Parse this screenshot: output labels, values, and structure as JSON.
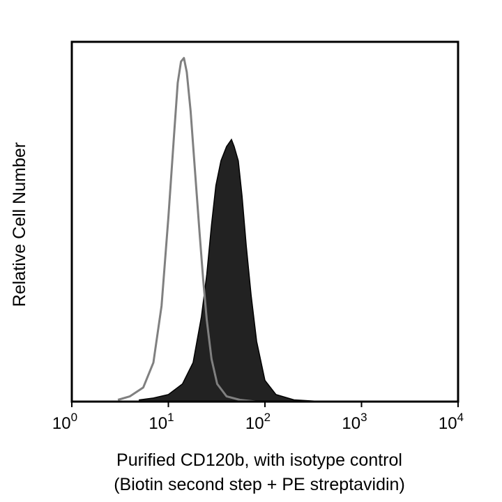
{
  "chart_data": {
    "type": "area",
    "xscale": "log",
    "xlim": [
      1,
      10000
    ],
    "ylim": [
      0,
      1
    ],
    "grid": false,
    "legend": "none",
    "x_ticks": [
      {
        "base": "10",
        "exp": "0",
        "value": 1
      },
      {
        "base": "10",
        "exp": "1",
        "value": 10
      },
      {
        "base": "10",
        "exp": "2",
        "value": 100
      },
      {
        "base": "10",
        "exp": "3",
        "value": 1000
      },
      {
        "base": "10",
        "exp": "4",
        "value": 10000
      }
    ],
    "xlabel_lines": [
      "Purified CD120b, with isotype control",
      "(Biotin second step + PE streptavidin)"
    ],
    "ylabel": "Relative Cell Number",
    "series": [
      {
        "style": "filled",
        "color": "#222222",
        "x": [
          5,
          7,
          10,
          14,
          18,
          22,
          25,
          28,
          31,
          35,
          40,
          45,
          48,
          53,
          58,
          64,
          72,
          82,
          100,
          130,
          200,
          400
        ],
        "y": [
          0.005,
          0.01,
          0.02,
          0.05,
          0.11,
          0.24,
          0.36,
          0.5,
          0.61,
          0.68,
          0.72,
          0.74,
          0.72,
          0.68,
          0.58,
          0.44,
          0.3,
          0.17,
          0.06,
          0.02,
          0.005,
          0.0
        ]
      },
      {
        "style": "outline",
        "color": "#808080",
        "x": [
          3,
          4,
          5.5,
          7,
          8.5,
          10,
          11.5,
          12.5,
          13.5,
          14.5,
          15.5,
          17,
          19,
          21,
          23,
          25,
          28,
          32,
          40,
          55,
          80
        ],
        "y": [
          0.005,
          0.015,
          0.04,
          0.11,
          0.27,
          0.52,
          0.76,
          0.9,
          0.96,
          0.97,
          0.93,
          0.82,
          0.64,
          0.48,
          0.34,
          0.23,
          0.12,
          0.05,
          0.015,
          0.005,
          0.0
        ]
      }
    ]
  }
}
